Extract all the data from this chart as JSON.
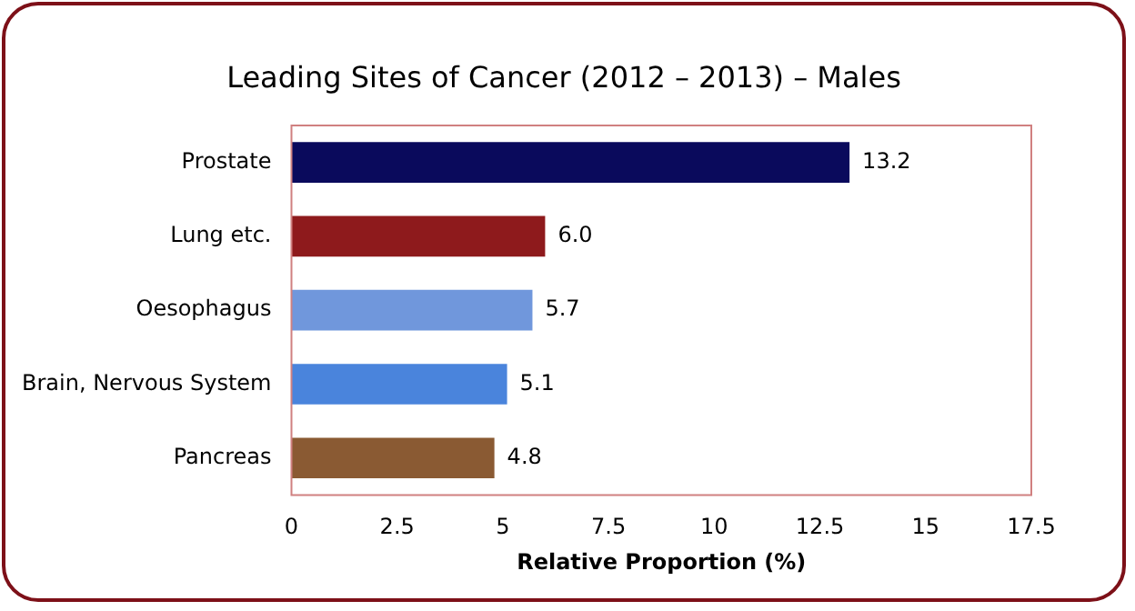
{
  "chart_data": {
    "type": "bar",
    "orientation": "horizontal",
    "title": "Leading Sites of Cancer (2012 – 2013) – Males",
    "xlabel": "Relative Proportion (%)",
    "categories": [
      "Prostate",
      "Lung etc.",
      "Oesophagus",
      "Brain, Nervous System",
      "Pancreas"
    ],
    "values": [
      13.2,
      6.0,
      5.7,
      5.1,
      4.8
    ],
    "colors": [
      "#0a0a5c",
      "#8e1a1c",
      "#7097dc",
      "#4a84dc",
      "#8a5a33"
    ],
    "value_labels": [
      "13.2",
      "6.0",
      "5.7",
      "5.1",
      "4.8"
    ],
    "xlim": [
      0,
      17.5
    ],
    "xticks": [
      0,
      2.5,
      5,
      7.5,
      10,
      12.5,
      15,
      17.5
    ],
    "grid": false,
    "legend": false
  }
}
